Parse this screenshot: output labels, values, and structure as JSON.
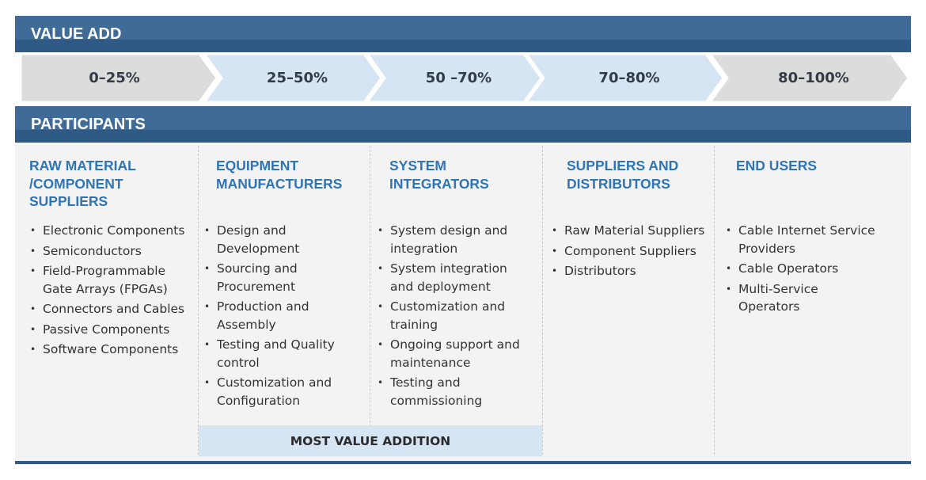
{
  "value_add": {
    "title": "VALUE ADD",
    "stages": [
      {
        "label": "0–25%",
        "color": "#dcdcdc"
      },
      {
        "label": "25–50%",
        "color": "#d6e5f3"
      },
      {
        "label": "50 –70%",
        "color": "#d6e5f3"
      },
      {
        "label": "70–80%",
        "color": "#d6e5f3"
      },
      {
        "label": "80–100%",
        "color": "#dcdcdc"
      }
    ]
  },
  "participants": {
    "title": "PARTICIPANTS",
    "columns": [
      {
        "heading": "RAW MATERIAL\n/COMPONENT\nSUPPLIERS",
        "items": [
          "Electronic Components",
          "Semiconductors",
          "Field-Programmable\nGate Arrays (FPGAs)",
          "Connectors and Cables",
          "Passive Components",
          "Software Components"
        ]
      },
      {
        "heading": "EQUIPMENT\nMANUFACTURERS",
        "items": [
          "Design and\nDevelopment",
          "Sourcing and\nProcurement",
          "Production and\nAssembly",
          "Testing and Quality\ncontrol",
          "Customization and\nConfiguration"
        ]
      },
      {
        "heading": "SYSTEM\nINTEGRATORS",
        "items": [
          "System design and\nintegration",
          " System integration\nand deployment",
          "Customization and\ntraining",
          "Ongoing support and\nmaintenance",
          "Testing and\ncommissioning"
        ]
      },
      {
        "heading": "SUPPLIERS AND\nDISTRIBUTORS",
        "items": [
          "Raw Material Suppliers",
          "Component  Suppliers",
          "Distributors"
        ]
      },
      {
        "heading": "END USERS",
        "items": [
          "Cable Internet Service\nProviders",
          "Cable Operators",
          "Multi-Service\nOperators"
        ]
      }
    ],
    "highlight": "MOST VALUE ADDITION"
  },
  "colors": {
    "header_band": "#3f6b96",
    "heading_text": "#2e75b6",
    "grey_arrow": "#dcdcdc",
    "blue_arrow": "#d6e5f3"
  }
}
